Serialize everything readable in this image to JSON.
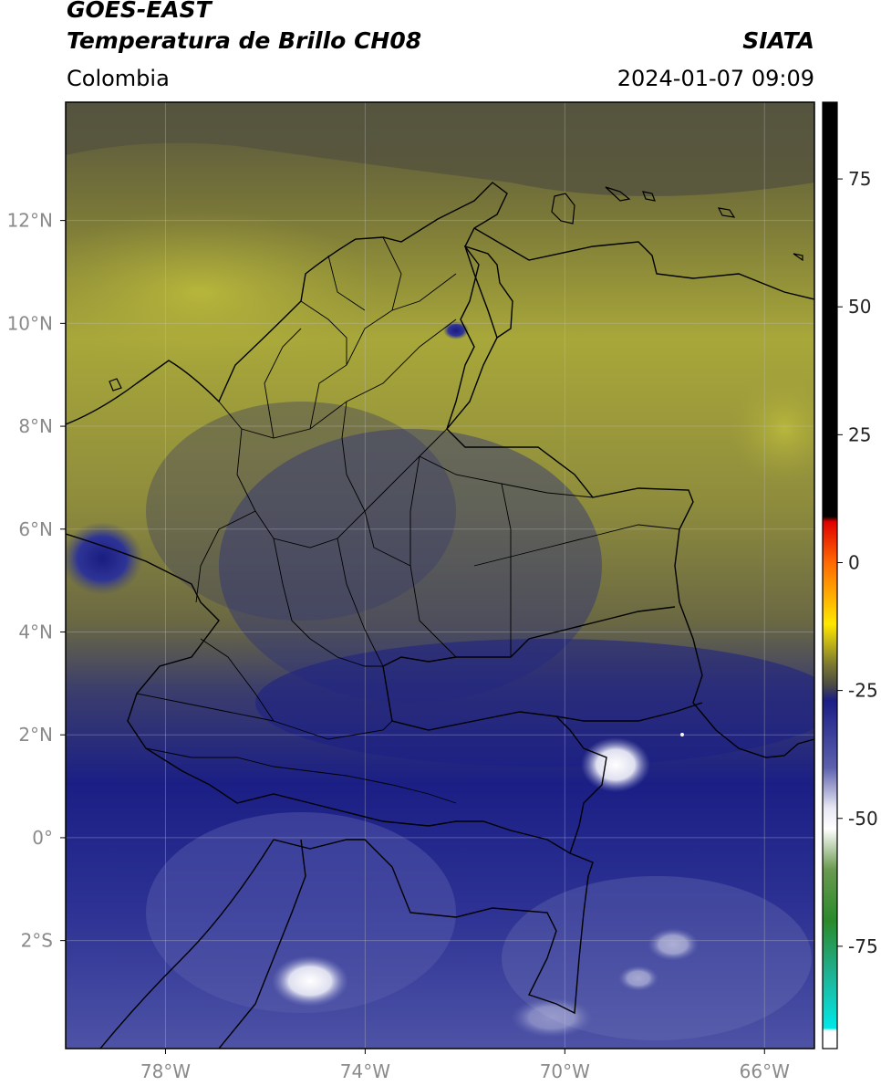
{
  "header": {
    "satellite": "GOES-EAST",
    "product": "Temperatura de Brillo CH08",
    "agency": "SIATA",
    "region": "Colombia",
    "datetime": "2024-01-07 09:09"
  },
  "map": {
    "lon_range": [
      -80,
      -65
    ],
    "lat_range": [
      -4.1,
      14.3
    ],
    "lon_ticks": [
      {
        "value": -78,
        "label": "78°W"
      },
      {
        "value": -74,
        "label": "74°W"
      },
      {
        "value": -70,
        "label": "70°W"
      },
      {
        "value": -66,
        "label": "66°W"
      }
    ],
    "lat_ticks": [
      {
        "value": 12,
        "label": "12°N"
      },
      {
        "value": 10,
        "label": "10°N"
      },
      {
        "value": 8,
        "label": "8°N"
      },
      {
        "value": 6,
        "label": "6°N"
      },
      {
        "value": 4,
        "label": "4°N"
      },
      {
        "value": 2,
        "label": "2°N"
      },
      {
        "value": 0,
        "label": "0°"
      },
      {
        "value": -2,
        "label": "2°S"
      }
    ],
    "grid": true,
    "colors": {
      "warm_olive": "#b5b43a",
      "mid_grey_olive": "#6e6c45",
      "dark_grey": "#4e4d42",
      "deep_blue": "#1b1f85",
      "blue": "#2e3496",
      "light_blue": "#5d62ad",
      "cold_white": "#ffffff"
    }
  },
  "colorbar": {
    "range": [
      -95,
      90
    ],
    "ticks": [
      {
        "value": 75,
        "label": "75"
      },
      {
        "value": 50,
        "label": "50"
      },
      {
        "value": 25,
        "label": "25"
      },
      {
        "value": 0,
        "label": "0"
      },
      {
        "value": -25,
        "label": "-25"
      },
      {
        "value": -50,
        "label": "-50"
      },
      {
        "value": -75,
        "label": "-75"
      }
    ],
    "stops": [
      {
        "value": 90,
        "color": "#000000"
      },
      {
        "value": 9,
        "color": "#000000"
      },
      {
        "value": 8,
        "color": "#e00000"
      },
      {
        "value": 0,
        "color": "#ff6a00"
      },
      {
        "value": -12,
        "color": "#ffe800"
      },
      {
        "value": -20,
        "color": "#7a7830"
      },
      {
        "value": -24,
        "color": "#4a4a44"
      },
      {
        "value": -27,
        "color": "#1a1e86"
      },
      {
        "value": -40,
        "color": "#5c60ad"
      },
      {
        "value": -48,
        "color": "#e8e8f4"
      },
      {
        "value": -52,
        "color": "#ffffff"
      },
      {
        "value": -60,
        "color": "#6a9a50"
      },
      {
        "value": -70,
        "color": "#2a8a2a"
      },
      {
        "value": -80,
        "color": "#20b090"
      },
      {
        "value": -91,
        "color": "#00e8e8"
      },
      {
        "value": -91.5,
        "color": "#ffffff"
      },
      {
        "value": -95,
        "color": "#ffffff"
      }
    ]
  }
}
